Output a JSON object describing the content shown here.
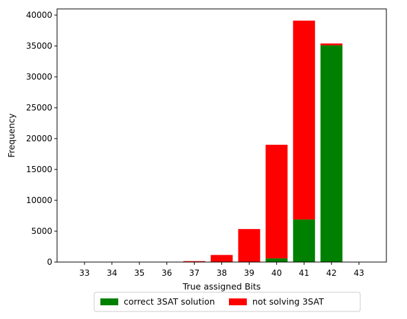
{
  "chart_data": {
    "type": "bar",
    "stacked": true,
    "title": "",
    "xlabel": "True assigned Bits",
    "ylabel": "Frequency",
    "categories": [
      "33",
      "34",
      "35",
      "36",
      "37",
      "38",
      "39",
      "40",
      "41",
      "42",
      "43"
    ],
    "x": [
      33,
      34,
      35,
      36,
      37,
      38,
      39,
      40,
      41,
      42,
      43
    ],
    "xlim": [
      32,
      44
    ],
    "ylim": [
      0,
      41000
    ],
    "yticks": [
      0,
      5000,
      10000,
      15000,
      20000,
      25000,
      30000,
      35000,
      40000
    ],
    "grid": false,
    "legend_position": "bottom-center, below axes",
    "series": [
      {
        "name": "correct 3SAT solution",
        "color": "#008000",
        "values": [
          0,
          0,
          0,
          0,
          0,
          0,
          0,
          600,
          6900,
          35100,
          0
        ]
      },
      {
        "name": "not solving 3SAT",
        "color": "#ff0000",
        "values": [
          0,
          0,
          0,
          0,
          150,
          1150,
          5350,
          18400,
          32200,
          300,
          0
        ]
      }
    ]
  }
}
